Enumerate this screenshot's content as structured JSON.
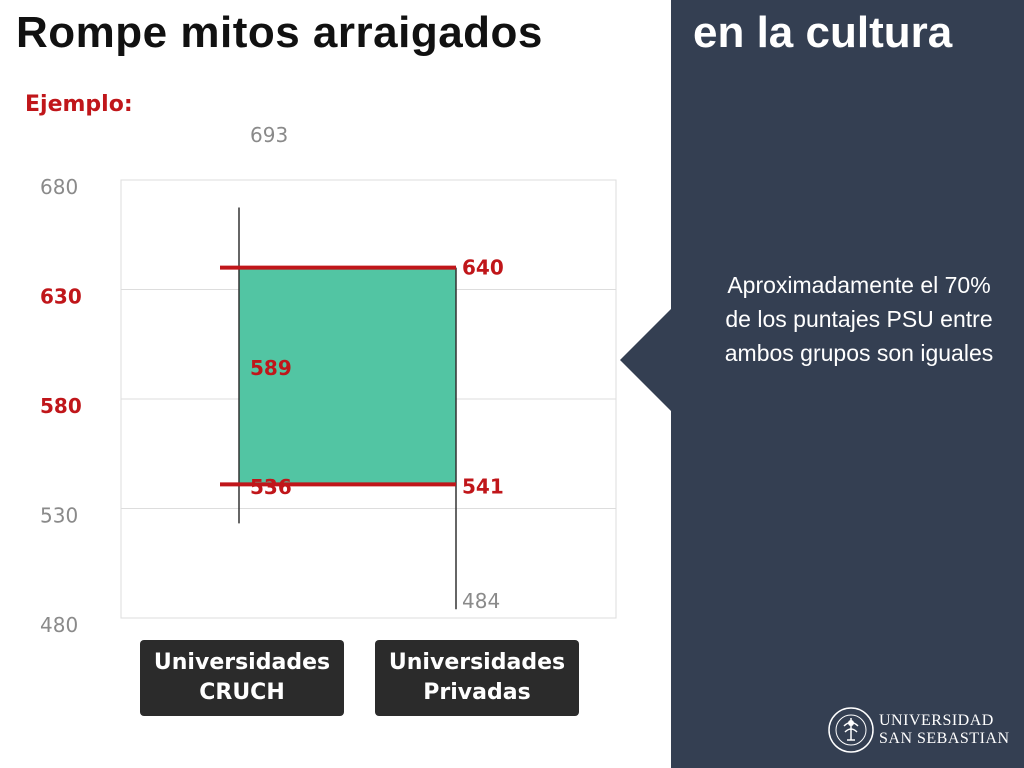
{
  "header": {
    "title_left": "Rompe mitos arraigados",
    "title_right": "en la cultura"
  },
  "example_label": "Ejemplo:",
  "callout": "Aproximadamente el 70% de los puntajes PSU entre ambos grupos son iguales",
  "logo": {
    "line1": "UNIVERSIDAD",
    "line2": "SAN SEBASTIAN"
  },
  "colors": {
    "accent_red": "#c0161a",
    "fill_green": "#52c5a3",
    "panel": "#343f52",
    "tick_gray": "#8a8a8a"
  },
  "chart_data": {
    "type": "bar",
    "categories": [
      "Universidades CRUCH",
      "Universidades Privadas"
    ],
    "category_labels": [
      [
        "Universidades",
        "CRUCH"
      ],
      [
        "Universidades",
        "Privadas"
      ]
    ],
    "ylim": [
      480,
      680
    ],
    "yticks": [
      {
        "value": 680,
        "label": "680",
        "highlight": false
      },
      {
        "value": 630,
        "label": "630",
        "highlight": true
      },
      {
        "value": 580,
        "label": "580",
        "highlight": true
      },
      {
        "value": 530,
        "label": "530",
        "highlight": false
      },
      {
        "value": 480,
        "label": "480",
        "highlight": false
      }
    ],
    "ranges": [
      {
        "category": "Universidades CRUCH",
        "max": 693,
        "high": 640,
        "mid": 589,
        "low": 536
      },
      {
        "category": "Universidades Privadas",
        "low": 484,
        "mid_low": 541,
        "high": 640
      }
    ],
    "overlap": {
      "low": 541,
      "high": 640
    },
    "data_labels": [
      {
        "text": "693",
        "value": 693,
        "color": "gray",
        "series": 0
      },
      {
        "text": "640",
        "value": 640,
        "color": "red",
        "series": 1
      },
      {
        "text": "589",
        "value": 589,
        "color": "red",
        "series": 0
      },
      {
        "text": "541",
        "value": 541,
        "color": "red",
        "series": 1
      },
      {
        "text": "536",
        "value": 536,
        "color": "red",
        "series": 0
      },
      {
        "text": "484",
        "value": 484,
        "color": "gray",
        "series": 1
      }
    ],
    "grid": true
  }
}
